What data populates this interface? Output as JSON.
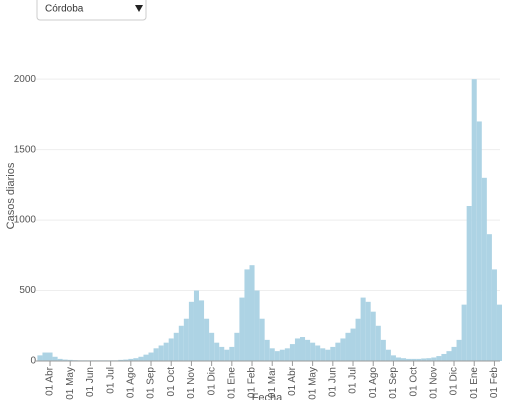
{
  "dropdown": {
    "selected": "Córdoba"
  },
  "chart_data": {
    "type": "bar",
    "y_label": "Casos diarios",
    "x_label": "Fecha",
    "categories": [
      null,
      null,
      "01 Abr",
      null,
      null,
      null,
      "01 May",
      null,
      null,
      null,
      "01 Jun",
      null,
      null,
      null,
      "01 Jul",
      null,
      null,
      null,
      "01 Ago",
      null,
      null,
      null,
      "01 Sep",
      null,
      null,
      null,
      "01 Oct",
      null,
      null,
      null,
      "01 Nov",
      null,
      null,
      null,
      "01 Dic",
      null,
      null,
      null,
      "01 Ene",
      null,
      null,
      null,
      "01 Feb",
      null,
      null,
      null,
      "01 Mar",
      null,
      null,
      null,
      "01 Abr",
      null,
      null,
      null,
      "01 May",
      null,
      null,
      null,
      "01 Jun",
      null,
      null,
      null,
      "01 Jul",
      null,
      null,
      null,
      "01 Ago",
      null,
      null,
      null,
      "01 Sep",
      null,
      null,
      null,
      "01 Oct",
      null,
      null,
      null,
      "01 Nov",
      null,
      null,
      null,
      "01 Dic",
      null,
      null,
      null,
      "01 Ene",
      null,
      null,
      null,
      "01 Feb",
      null
    ],
    "values": [
      40,
      60,
      60,
      30,
      15,
      10,
      8,
      6,
      5,
      5,
      5,
      5,
      5,
      5,
      5,
      5,
      8,
      10,
      15,
      20,
      30,
      45,
      60,
      90,
      110,
      130,
      160,
      200,
      250,
      300,
      420,
      500,
      430,
      300,
      200,
      130,
      100,
      80,
      100,
      200,
      450,
      650,
      680,
      500,
      300,
      150,
      90,
      70,
      80,
      90,
      120,
      160,
      170,
      150,
      130,
      110,
      90,
      80,
      100,
      130,
      160,
      200,
      230,
      300,
      450,
      420,
      350,
      250,
      150,
      80,
      40,
      25,
      20,
      15,
      15,
      15,
      18,
      20,
      25,
      35,
      50,
      70,
      100,
      150,
      400,
      1100,
      2000,
      1700,
      1300,
      900,
      650,
      400
    ],
    "color": "#add3e4",
    "ylim": [
      0,
      2200
    ],
    "yticks": [
      0,
      500,
      1000,
      1500,
      2000
    ],
    "grid": true
  }
}
